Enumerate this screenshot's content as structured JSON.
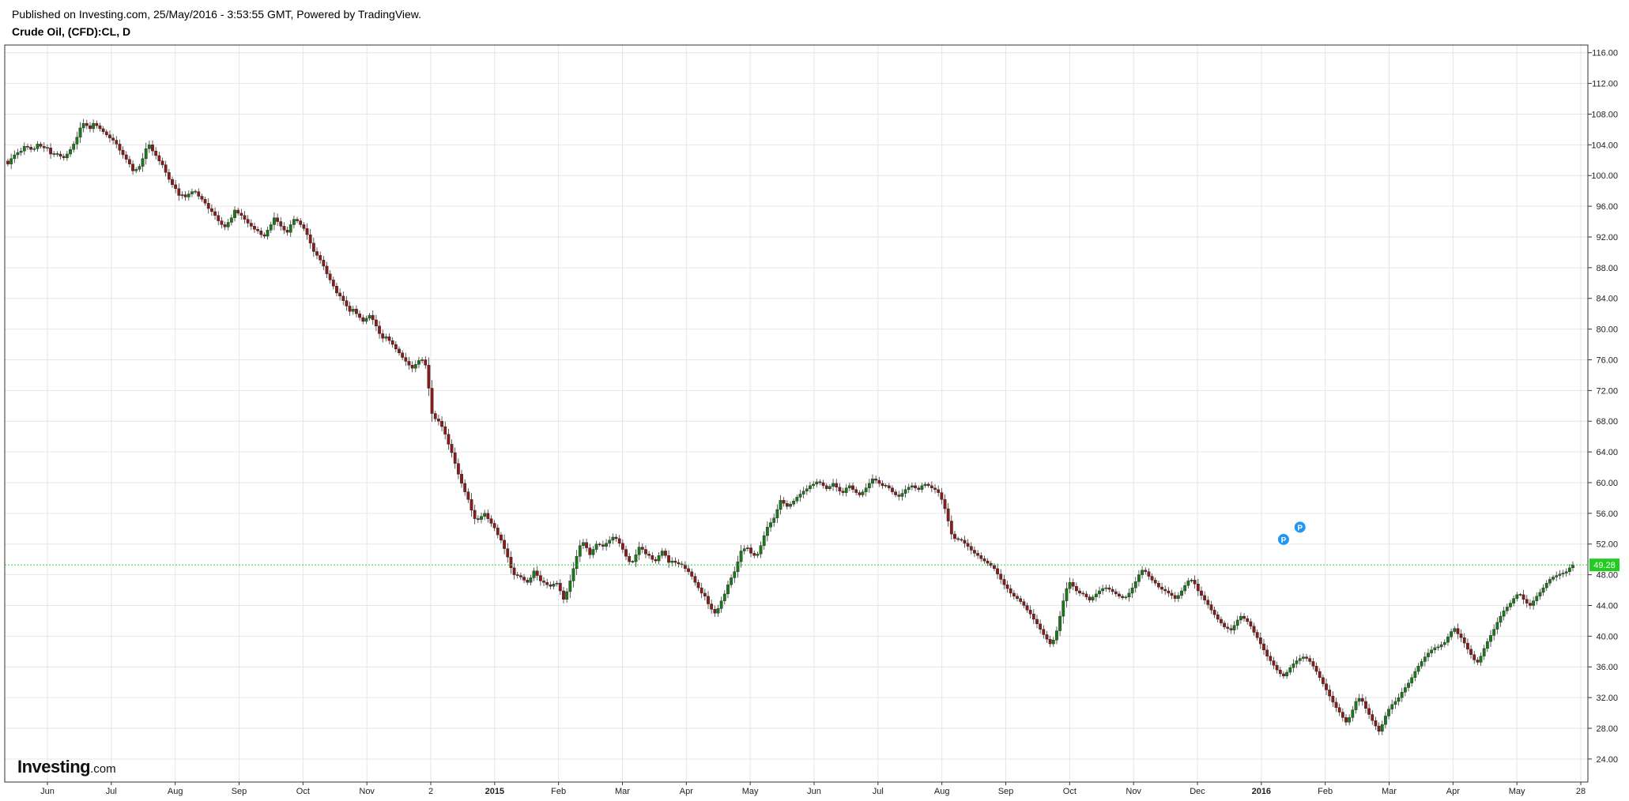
{
  "header": {
    "published": "Published on Investing.com, 25/May/2016 - 3:53:55 GMT, Powered by TradingView.",
    "symbol": "Crude Oil, (CFD):CL, D"
  },
  "logo": {
    "brand": "Investing",
    "suffix": ".com"
  },
  "colors": {
    "up": "#1a7a1a",
    "down": "#8b1a1a",
    "grid": "#e6e6e6",
    "price_line": "#33cc33",
    "marker": "#2196f3"
  },
  "chart_data": {
    "type": "candlestick",
    "ylim": [
      21,
      117
    ],
    "y_ticks": [
      "116.00",
      "112.00",
      "108.00",
      "104.00",
      "100.00",
      "96.00",
      "92.00",
      "88.00",
      "84.00",
      "80.00",
      "76.00",
      "72.00",
      "68.00",
      "64.00",
      "60.00",
      "56.00",
      "52.00",
      "48.00",
      "44.00",
      "40.00",
      "36.00",
      "32.00",
      "28.00",
      "24.00"
    ],
    "x_labels": [
      "Jun",
      "Jul",
      "Aug",
      "Sep",
      "Oct",
      "Nov",
      "2",
      "2015",
      "Feb",
      "Mar",
      "Apr",
      "May",
      "Jun",
      "Jul",
      "Aug",
      "Sep",
      "Oct",
      "Nov",
      "Dec",
      "2016",
      "Feb",
      "Mar",
      "Apr",
      "May",
      "28"
    ],
    "x_label_bold": [
      "2015",
      "2016"
    ],
    "current_price": 49.28,
    "current_price_label": "49.28",
    "markers": [
      {
        "label": "P",
        "index": 393,
        "price": 54.2
      },
      {
        "label": "P",
        "index": 388,
        "price": 52.6
      }
    ],
    "closes": [
      101.5,
      102.2,
      102.7,
      103.0,
      103.2,
      103.8,
      103.7,
      103.4,
      103.5,
      104.1,
      103.8,
      103.6,
      103.6,
      102.8,
      102.8,
      102.8,
      102.5,
      102.3,
      102.8,
      103.4,
      104.1,
      105.0,
      106.2,
      106.8,
      106.5,
      106.1,
      106.8,
      106.5,
      106.1,
      105.7,
      105.3,
      104.9,
      104.6,
      104.1,
      103.3,
      102.7,
      102.1,
      101.5,
      100.6,
      100.8,
      101.2,
      102.2,
      103.5,
      104.0,
      103.2,
      102.6,
      101.9,
      101.4,
      100.4,
      99.5,
      98.8,
      98.3,
      97.4,
      97.5,
      97.2,
      97.6,
      97.9,
      97.9,
      97.3,
      96.9,
      96.4,
      95.7,
      95.3,
      94.8,
      94.1,
      93.6,
      93.3,
      93.9,
      94.5,
      95.5,
      95.1,
      94.8,
      94.3,
      93.8,
      93.4,
      93.0,
      92.8,
      92.3,
      92.1,
      92.9,
      93.6,
      94.5,
      94.0,
      93.4,
      92.9,
      92.6,
      93.6,
      94.3,
      94.1,
      93.6,
      93.1,
      92.3,
      91.2,
      90.1,
      89.6,
      89.0,
      88.2,
      87.2,
      86.4,
      85.6,
      84.7,
      84.3,
      83.7,
      83.0,
      82.3,
      82.6,
      82.0,
      81.5,
      81.0,
      81.4,
      81.8,
      81.2,
      80.4,
      79.4,
      78.8,
      79.0,
      78.5,
      78.0,
      77.4,
      76.9,
      76.3,
      75.8,
      75.3,
      74.9,
      75.4,
      75.9,
      76.0,
      75.3,
      72.3,
      69.0,
      68.3,
      68.0,
      67.3,
      66.3,
      65.0,
      63.9,
      62.5,
      61.1,
      59.9,
      58.8,
      57.8,
      56.4,
      55.3,
      55.2,
      55.6,
      56.0,
      55.3,
      54.7,
      54.1,
      53.2,
      52.5,
      51.4,
      50.3,
      48.9,
      48.0,
      47.9,
      47.7,
      47.3,
      47.0,
      47.6,
      48.5,
      47.9,
      47.2,
      47.0,
      46.7,
      46.5,
      46.8,
      46.9,
      45.9,
      44.8,
      45.8,
      47.2,
      48.8,
      50.4,
      51.8,
      52.2,
      51.5,
      50.6,
      51.3,
      52.0,
      51.9,
      51.7,
      52.1,
      52.5,
      52.9,
      52.7,
      52.1,
      51.3,
      50.4,
      49.7,
      49.7,
      50.6,
      51.6,
      51.3,
      50.7,
      50.5,
      50.0,
      49.8,
      50.5,
      51.1,
      50.5,
      49.6,
      49.8,
      49.6,
      49.4,
      49.3,
      48.8,
      48.4,
      47.8,
      47.0,
      46.3,
      45.6,
      45.2,
      44.2,
      43.5,
      43.0,
      43.6,
      44.6,
      45.5,
      46.7,
      47.6,
      48.4,
      49.7,
      51.1,
      51.4,
      51.5,
      50.8,
      50.5,
      50.7,
      51.8,
      53.1,
      54.2,
      54.8,
      55.4,
      56.5,
      57.7,
      57.3,
      56.9,
      57.2,
      57.6,
      58.1,
      58.5,
      58.9,
      59.2,
      59.6,
      59.8,
      60.1,
      60.0,
      59.6,
      59.2,
      59.5,
      59.9,
      59.4,
      58.9,
      58.7,
      59.3,
      59.6,
      59.1,
      58.7,
      58.4,
      58.8,
      59.3,
      59.9,
      60.5,
      60.3,
      59.9,
      59.6,
      59.6,
      59.3,
      58.8,
      58.4,
      58.2,
      58.6,
      59.1,
      59.4,
      59.6,
      59.3,
      59.1,
      59.6,
      59.8,
      59.6,
      59.3,
      59.1,
      58.7,
      57.8,
      56.6,
      55.0,
      53.3,
      52.7,
      52.6,
      52.5,
      52.1,
      51.7,
      51.2,
      50.8,
      50.5,
      50.1,
      49.8,
      49.5,
      49.2,
      48.8,
      48.1,
      47.4,
      46.7,
      46.2,
      45.6,
      45.2,
      44.9,
      44.5,
      44.0,
      43.4,
      42.9,
      42.2,
      41.6,
      40.9,
      40.2,
      39.6,
      39.0,
      39.5,
      40.7,
      42.6,
      44.6,
      46.2,
      47.0,
      46.5,
      45.9,
      45.6,
      45.5,
      45.1,
      44.7,
      45.1,
      45.5,
      45.9,
      46.2,
      46.3,
      46.1,
      45.8,
      45.5,
      45.2,
      45.0,
      45.1,
      45.6,
      46.3,
      47.1,
      48.0,
      48.6,
      48.4,
      47.8,
      47.3,
      46.9,
      46.4,
      46.1,
      45.9,
      45.6,
      45.3,
      44.9,
      45.3,
      45.9,
      46.6,
      47.2,
      47.3,
      46.8,
      45.9,
      45.3,
      44.7,
      44.1,
      43.4,
      42.8,
      42.2,
      41.7,
      41.2,
      41.0,
      40.8,
      41.4,
      42.1,
      42.6,
      42.3,
      41.9,
      41.3,
      40.5,
      39.8,
      39.0,
      38.2,
      37.4,
      36.8,
      36.2,
      35.6,
      35.1,
      34.8,
      35.3,
      35.9,
      36.4,
      36.8,
      37.1,
      37.3,
      37.1,
      36.7,
      36.1,
      35.4,
      34.6,
      33.8,
      33.0,
      32.2,
      31.4,
      30.7,
      30.1,
      29.4,
      28.8,
      29.4,
      30.4,
      31.5,
      31.9,
      31.5,
      30.6,
      29.8,
      29.0,
      28.3,
      27.6,
      28.5,
      29.6,
      30.5,
      31.1,
      31.5,
      32.0,
      32.7,
      33.3,
      33.9,
      34.6,
      35.4,
      36.1,
      36.7,
      37.3,
      37.8,
      38.2,
      38.5,
      38.6,
      38.9,
      39.2,
      39.9,
      40.6,
      41.0,
      40.3,
      39.8,
      39.1,
      38.3,
      37.6,
      36.9,
      36.6,
      37.4,
      38.4,
      39.3,
      40.1,
      40.9,
      41.8,
      42.6,
      43.3,
      43.8,
      44.3,
      44.9,
      45.4,
      45.4,
      44.8,
      44.3,
      44.0,
      44.6,
      45.2,
      45.7,
      46.3,
      46.9,
      47.4,
      47.7,
      47.9,
      48.1,
      48.2,
      48.4,
      48.9,
      49.3
    ]
  }
}
